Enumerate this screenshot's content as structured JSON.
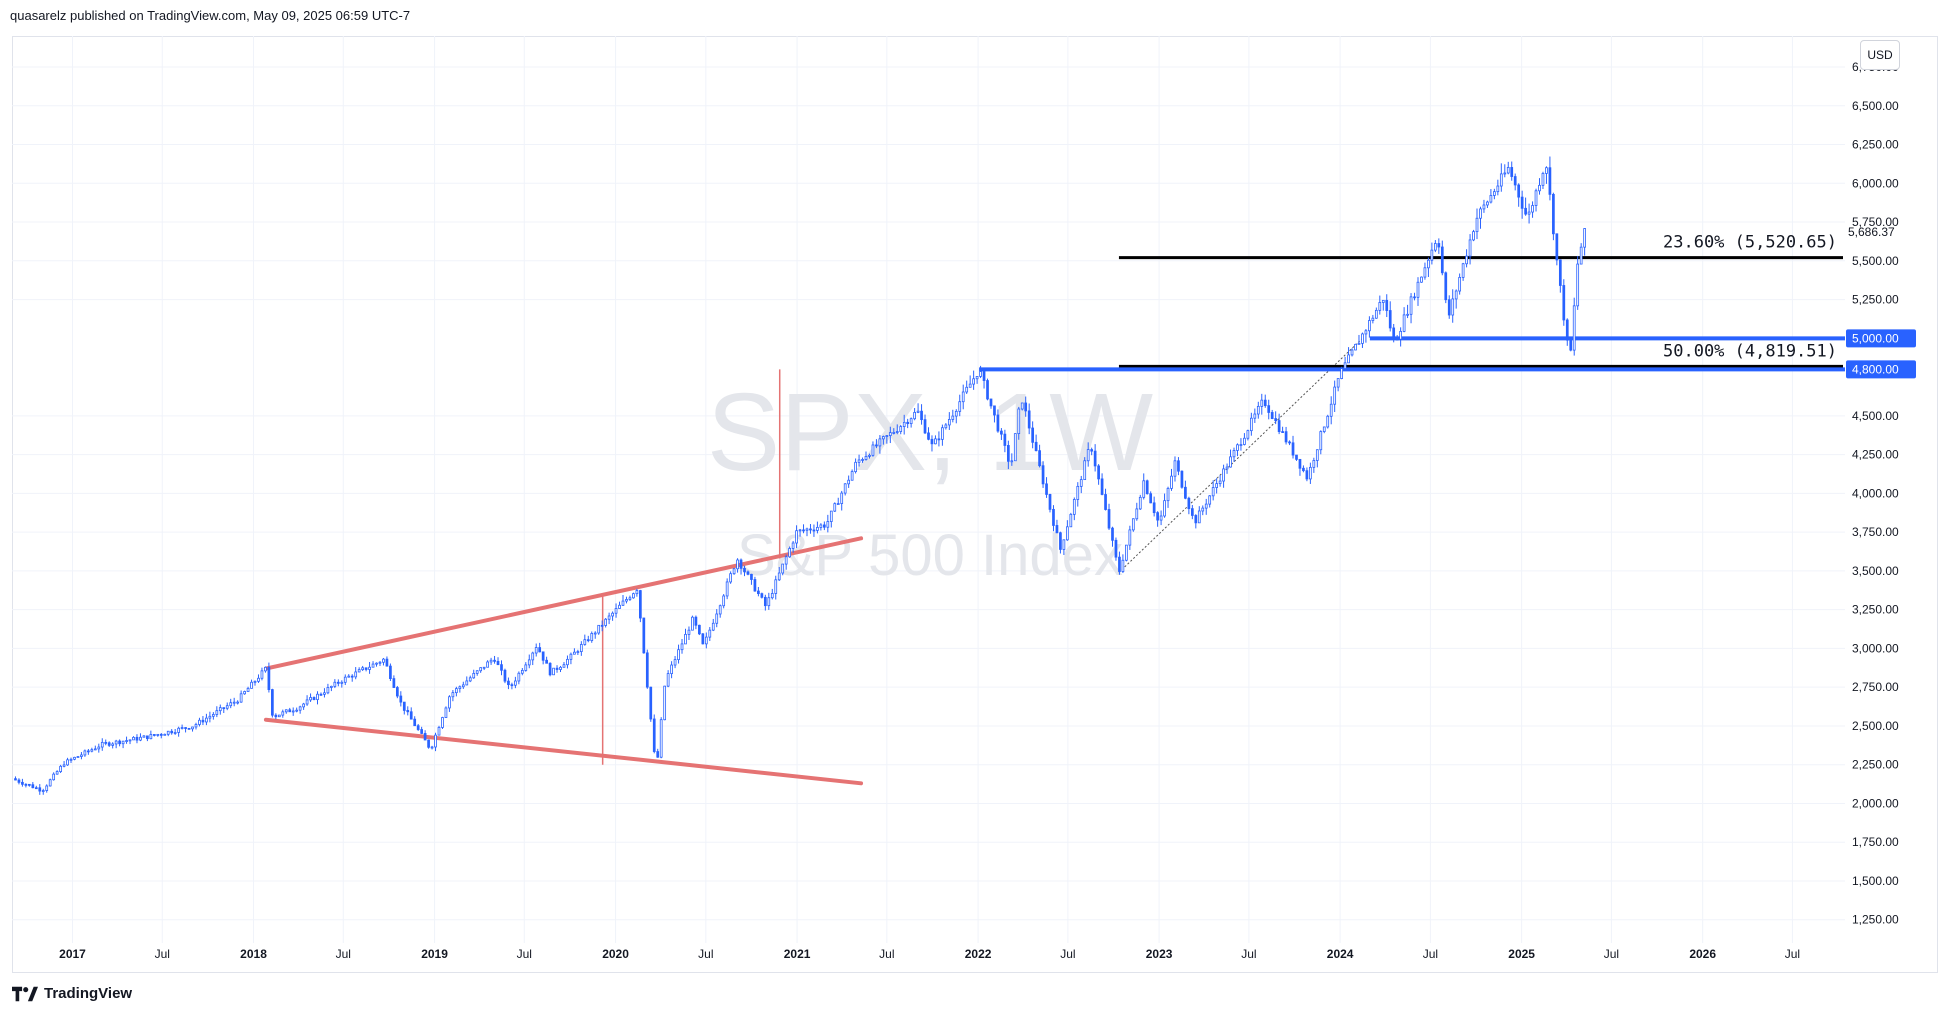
{
  "header": {
    "published": "quasarelz published on TradingView.com, May 09, 2025 06:59 UTC-7"
  },
  "toolbar": {
    "currency": "USD"
  },
  "brand": {
    "name": "TradingView",
    "logo_icon": "tradingview-logo-icon"
  },
  "watermark": {
    "symbol": "SPX, 1W",
    "name": "S&P 500 Index"
  },
  "colors": {
    "up_candle": "#2962ff",
    "down_candle": "#2962ff",
    "trendline": "#e57373",
    "support_line": "#2962ff",
    "fib_line": "#000000",
    "grid": "#f0f3fa"
  },
  "chart_data": {
    "type": "candlestick",
    "symbol": "SPX",
    "interval": "1W",
    "ylim": [
      1100,
      6950
    ],
    "y_axis_position": "right",
    "y_ticks": [
      "1,250.00",
      "1,500.00",
      "1,750.00",
      "2,000.00",
      "2,250.00",
      "2,500.00",
      "2,750.00",
      "3,000.00",
      "3,250.00",
      "3,500.00",
      "3,750.00",
      "4,000.00",
      "4,250.00",
      "4,500.00",
      "5,250.00",
      "5,500.00",
      "5,750.00",
      "6,000.00",
      "6,250.00",
      "6,500.00",
      "6,750.00"
    ],
    "y_tick_values": [
      1250,
      1500,
      1750,
      2000,
      2250,
      2500,
      2750,
      3000,
      3250,
      3500,
      3750,
      4000,
      4250,
      4500,
      5250,
      5500,
      5750,
      6000,
      6250,
      6500,
      6750
    ],
    "x_ticks": [
      "2017",
      "Jul",
      "2018",
      "Jul",
      "2019",
      "Jul",
      "2020",
      "Jul",
      "2021",
      "Jul",
      "2022",
      "Jul",
      "2023",
      "Jul",
      "2024",
      "Jul",
      "2025",
      "Jul",
      "2026",
      "Jul"
    ],
    "x_tick_dates": [
      "2017-01-01",
      "2017-07-01",
      "2018-01-01",
      "2018-07-01",
      "2019-01-01",
      "2019-07-01",
      "2020-01-01",
      "2020-07-01",
      "2021-01-01",
      "2021-07-01",
      "2022-01-01",
      "2022-07-01",
      "2023-01-01",
      "2023-07-01",
      "2024-01-01",
      "2024-07-01",
      "2025-01-01",
      "2025-07-01",
      "2026-01-01",
      "2026-07-01"
    ],
    "x_tick_bold": [
      true,
      false,
      true,
      false,
      true,
      false,
      true,
      false,
      true,
      false,
      true,
      false,
      true,
      false,
      true,
      false,
      true,
      false,
      true,
      false
    ],
    "price_path": [
      [
        "2016-09-01",
        2160
      ],
      [
        "2016-11-01",
        2085
      ],
      [
        "2016-12-15",
        2260
      ],
      [
        "2017-03-01",
        2380
      ],
      [
        "2017-06-01",
        2430
      ],
      [
        "2017-09-01",
        2500
      ],
      [
        "2017-12-01",
        2670
      ],
      [
        "2018-01-26",
        2870
      ],
      [
        "2018-02-09",
        2560
      ],
      [
        "2018-04-01",
        2620
      ],
      [
        "2018-07-01",
        2800
      ],
      [
        "2018-09-21",
        2930
      ],
      [
        "2018-10-26",
        2640
      ],
      [
        "2018-12-24",
        2350
      ],
      [
        "2019-02-01",
        2700
      ],
      [
        "2019-05-01",
        2940
      ],
      [
        "2019-06-01",
        2740
      ],
      [
        "2019-07-26",
        3020
      ],
      [
        "2019-08-23",
        2840
      ],
      [
        "2019-10-01",
        2940
      ],
      [
        "2020-02-14",
        3390
      ],
      [
        "2020-03-23",
        2200
      ],
      [
        "2020-04-10",
        2790
      ],
      [
        "2020-06-05",
        3190
      ],
      [
        "2020-06-26",
        3010
      ],
      [
        "2020-09-02",
        3580
      ],
      [
        "2020-10-30",
        3270
      ],
      [
        "2020-12-31",
        3750
      ],
      [
        "2021-03-01",
        3800
      ],
      [
        "2021-05-01",
        4200
      ],
      [
        "2021-09-01",
        4530
      ],
      [
        "2021-10-01",
        4300
      ],
      [
        "2022-01-03",
        4800
      ],
      [
        "2022-03-08",
        4170
      ],
      [
        "2022-03-29",
        4630
      ],
      [
        "2022-06-16",
        3640
      ],
      [
        "2022-08-16",
        4320
      ],
      [
        "2022-10-12",
        3490
      ],
      [
        "2022-12-01",
        4080
      ],
      [
        "2023-01-01",
        3800
      ],
      [
        "2023-02-02",
        4200
      ],
      [
        "2023-03-13",
        3810
      ],
      [
        "2023-07-31",
        4600
      ],
      [
        "2023-10-27",
        4100
      ],
      [
        "2024-01-01",
        4770
      ],
      [
        "2024-03-28",
        5260
      ],
      [
        "2024-04-19",
        4970
      ],
      [
        "2024-07-16",
        5670
      ],
      [
        "2024-08-05",
        5120
      ],
      [
        "2024-10-01",
        5770
      ],
      [
        "2024-12-06",
        6100
      ],
      [
        "2025-01-13",
        5770
      ],
      [
        "2025-02-19",
        6150
      ],
      [
        "2025-03-13",
        5500
      ],
      [
        "2025-04-08",
        4835
      ],
      [
        "2025-04-25",
        5520
      ],
      [
        "2025-05-09",
        5686.37
      ]
    ],
    "last_price_label": "5,686.37",
    "last_price": 5686.37,
    "horizontal_levels": [
      {
        "label": "5,000.00",
        "value": 5000,
        "from": "2024-03-01"
      },
      {
        "label": "4,800.00",
        "value": 4800,
        "from": "2022-01-03"
      }
    ],
    "fib_levels": [
      {
        "label": "23.60% (5,520.65)",
        "value": 5520.65
      },
      {
        "label": "50.00% (4,819.51)",
        "value": 4819.51
      }
    ],
    "fib_from": "2022-10-12",
    "trendlines": [
      {
        "x1": "2018-01-26",
        "y1": 2870,
        "x2": "2021-05-10",
        "y2": 3710
      },
      {
        "x1": "2018-01-26",
        "y1": 2540,
        "x2": "2021-05-10",
        "y2": 2130
      }
    ],
    "fib_anchor_line": {
      "x1": "2022-10-12",
      "y1": 3490,
      "x2": "2024-02-15",
      "y2": 5000
    },
    "vertical_markers": [
      {
        "x": "2019-12-06",
        "y1": 2250,
        "y2": 3340
      },
      {
        "x": "2020-11-27",
        "y1": 3580,
        "y2": 4800
      }
    ]
  }
}
